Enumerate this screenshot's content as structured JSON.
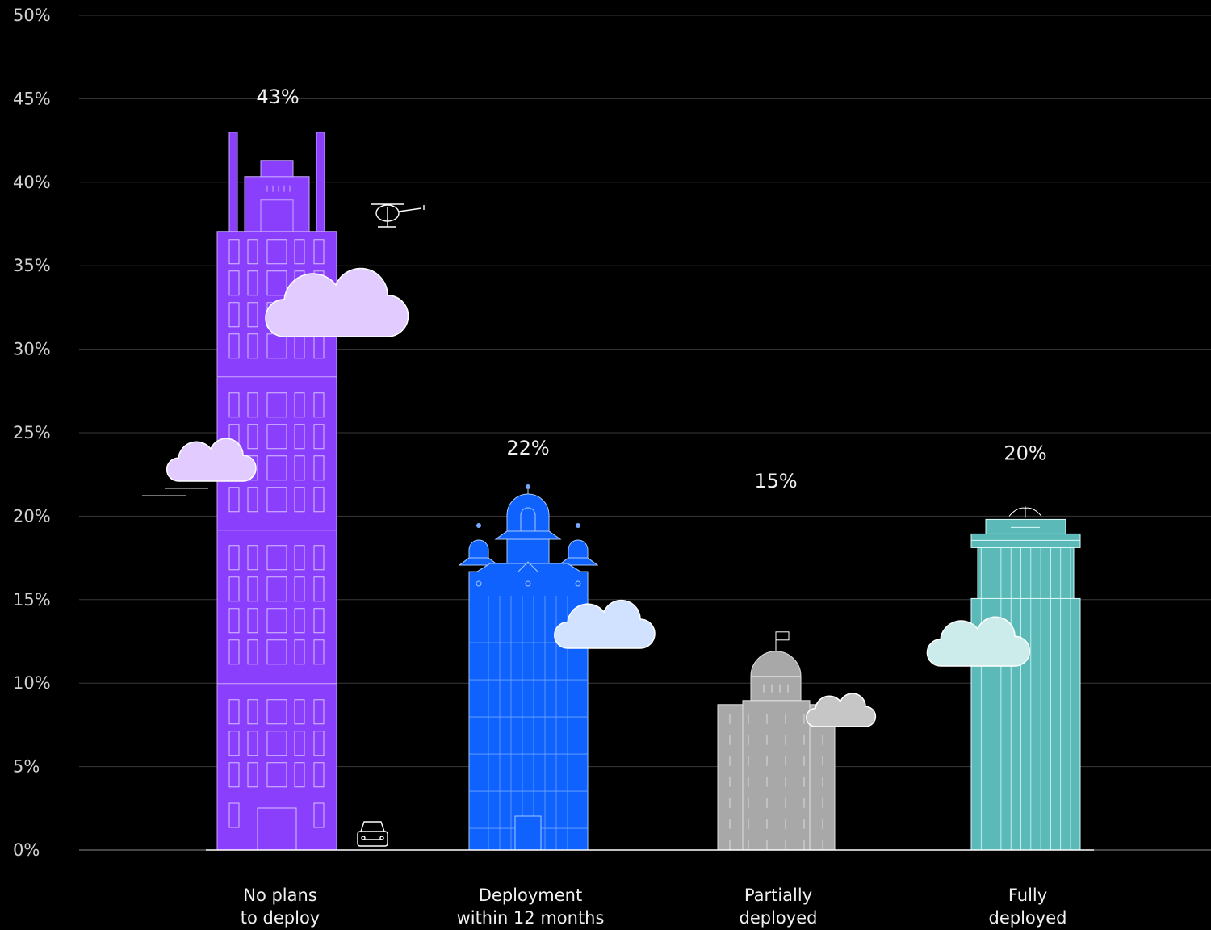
{
  "chart_data": {
    "type": "bar",
    "categories": [
      [
        "No plans",
        "to deploy"
      ],
      [
        "Deployment",
        "within 12 months"
      ],
      [
        "Partially",
        "deployed"
      ],
      [
        "Fully",
        "deployed"
      ]
    ],
    "values": [
      43,
      22,
      15,
      20
    ],
    "value_labels": [
      "43%",
      "22%",
      "15%",
      "20%"
    ],
    "ylim": [
      0,
      50
    ],
    "yticks": [
      0,
      5,
      10,
      15,
      20,
      25,
      30,
      35,
      40,
      45,
      50
    ],
    "ytick_labels": [
      "0%",
      "5%",
      "10%",
      "15%",
      "20%",
      "25%",
      "30%",
      "35%",
      "40%",
      "45%",
      "50%"
    ],
    "grid": true,
    "colors": [
      "#8a3ffc",
      "#0f62fe",
      "#a8a8a8",
      "#5bbab8"
    ],
    "cloud_colors": [
      "#e2ccff",
      "#d0e2ff",
      "#c6c6c6",
      "#cbecea"
    ],
    "illustration": "bars drawn as city buildings"
  }
}
